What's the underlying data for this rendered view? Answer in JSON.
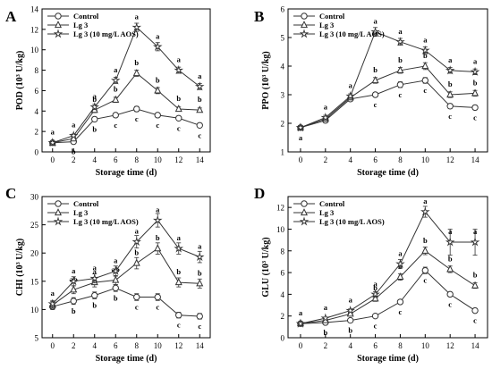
{
  "chart_data": [
    {
      "panel": "A",
      "type": "line",
      "x": [
        0,
        2,
        4,
        6,
        8,
        10,
        12,
        14
      ],
      "xlabel": "Storage time (d)",
      "ylabel": "POD (10",
      "ylabel_sup": "3",
      "ylabel_tail": " U/kg)",
      "xlim": [
        -1,
        15
      ],
      "ylim": [
        0,
        14
      ],
      "yticks": [
        0,
        2,
        4,
        6,
        8,
        10,
        12,
        14
      ],
      "grid": false,
      "legend_position": "top-left",
      "series": [
        {
          "name": "Control",
          "marker": "circle",
          "values": [
            0.9,
            1.0,
            3.2,
            3.6,
            4.2,
            3.6,
            3.3,
            2.6
          ],
          "errors": [
            0.1,
            0.1,
            0.2,
            0.2,
            0.25,
            0.2,
            0.2,
            0.2
          ],
          "letters": [
            "",
            "b",
            "b",
            "c",
            "c",
            "c",
            "c",
            "c"
          ]
        },
        {
          "name": "Lg 3",
          "marker": "triangle",
          "values": [
            0.9,
            1.3,
            4.1,
            5.1,
            7.7,
            6.0,
            4.2,
            4.1
          ],
          "errors": [
            0.1,
            0.1,
            0.25,
            0.25,
            0.3,
            0.3,
            0.2,
            0.2
          ],
          "letters": [
            "",
            "",
            "b",
            "b",
            "b",
            "b",
            "b",
            "b"
          ]
        },
        {
          "name": "Lg 3 (10 mg/L AOS)",
          "marker": "star",
          "values": [
            0.9,
            1.6,
            4.4,
            7.0,
            12.2,
            10.3,
            8.0,
            6.4
          ],
          "errors": [
            0.1,
            0.15,
            0.25,
            0.3,
            0.4,
            0.4,
            0.3,
            0.3
          ],
          "letters": [
            "a",
            "a",
            "a",
            "a",
            "a",
            "a",
            "a",
            "a"
          ]
        }
      ]
    },
    {
      "panel": "B",
      "type": "line",
      "x": [
        0,
        2,
        4,
        6,
        8,
        10,
        12,
        14
      ],
      "xlabel": "Storage time (d)",
      "ylabel": "PPO (10",
      "ylabel_sup": "3",
      "ylabel_tail": " U/kg)",
      "xlim": [
        -1,
        15
      ],
      "ylim": [
        1,
        6
      ],
      "yticks": [
        1,
        2,
        3,
        4,
        5,
        6
      ],
      "grid": false,
      "legend_position": "top-left",
      "series": [
        {
          "name": "Control",
          "marker": "circle",
          "values": [
            1.85,
            2.1,
            2.85,
            3.0,
            3.35,
            3.5,
            2.6,
            2.55
          ],
          "errors": [
            0.05,
            0.08,
            0.08,
            0.08,
            0.1,
            0.1,
            0.08,
            0.08
          ],
          "letters": [
            "a",
            "",
            "",
            "c",
            "c",
            "c",
            "c",
            "c"
          ]
        },
        {
          "name": "Lg 3",
          "marker": "triangle",
          "values": [
            1.85,
            2.15,
            2.9,
            3.5,
            3.85,
            4.0,
            3.0,
            3.05
          ],
          "errors": [
            0.05,
            0.08,
            0.08,
            0.1,
            0.1,
            0.12,
            0.1,
            0.1
          ],
          "letters": [
            "",
            "",
            "",
            "b",
            "b",
            "b",
            "b",
            "b"
          ]
        },
        {
          "name": "Lg 3 (10 mg/L AOS)",
          "marker": "star",
          "values": [
            1.85,
            2.2,
            2.95,
            5.2,
            4.85,
            4.55,
            3.85,
            3.8
          ],
          "errors": [
            0.05,
            0.08,
            0.08,
            0.15,
            0.12,
            0.12,
            0.1,
            0.1
          ],
          "letters": [
            "",
            "a",
            "a",
            "a",
            "a",
            "a",
            "a",
            "a"
          ]
        }
      ]
    },
    {
      "panel": "C",
      "type": "line",
      "x": [
        0,
        2,
        4,
        6,
        8,
        10,
        12,
        14
      ],
      "xlabel": "Storage time (d)",
      "ylabel": "CHI (10",
      "ylabel_sup": "3",
      "ylabel_tail": " U/kg)",
      "xlim": [
        -1,
        15
      ],
      "ylim": [
        5,
        30
      ],
      "yticks": [
        5,
        10,
        15,
        20,
        25,
        30
      ],
      "grid": false,
      "legend_position": "top-left",
      "series": [
        {
          "name": "Control",
          "marker": "circle",
          "values": [
            10.5,
            11.5,
            12.5,
            13.8,
            12.2,
            12.2,
            9.0,
            8.8
          ],
          "errors": [
            0.5,
            0.6,
            0.6,
            0.6,
            0.6,
            0.6,
            0.5,
            0.5
          ],
          "letters": [
            "",
            "b",
            "b",
            "b",
            "c",
            "c",
            "c",
            "c"
          ]
        },
        {
          "name": "Lg 3",
          "marker": "triangle",
          "values": [
            10.8,
            13.5,
            14.8,
            15.2,
            18.2,
            20.8,
            14.8,
            14.6
          ],
          "errors": [
            0.6,
            0.7,
            0.8,
            0.8,
            1.0,
            1.0,
            0.8,
            0.8
          ],
          "letters": [
            "",
            "ab",
            "a",
            "ab",
            "b",
            "b",
            "b",
            "b"
          ]
        },
        {
          "name": "Lg 3 (10 mg/L AOS)",
          "marker": "star",
          "values": [
            11.0,
            15.0,
            15.5,
            16.8,
            22.0,
            25.8,
            20.8,
            19.3
          ],
          "errors": [
            0.6,
            0.8,
            0.8,
            0.9,
            1.1,
            1.2,
            1.0,
            1.0
          ],
          "letters": [
            "a",
            "a",
            "a",
            "a",
            "a",
            "a",
            "a",
            "a"
          ]
        }
      ]
    },
    {
      "panel": "D",
      "type": "line",
      "x": [
        0,
        2,
        4,
        6,
        8,
        10,
        12,
        14
      ],
      "xlabel": "Storage time (d)",
      "ylabel": "GLU (10",
      "ylabel_sup": "3",
      "ylabel_tail": " U/kg)",
      "xlim": [
        -1,
        15
      ],
      "ylim": [
        0,
        13
      ],
      "yticks": [
        0,
        2,
        4,
        6,
        8,
        10,
        12
      ],
      "grid": false,
      "legend_position": "top-left",
      "series": [
        {
          "name": "Control",
          "marker": "circle",
          "values": [
            1.3,
            1.4,
            1.6,
            2.0,
            3.3,
            6.2,
            4.0,
            2.5
          ],
          "errors": [
            0.1,
            0.1,
            0.1,
            0.15,
            0.2,
            0.3,
            0.2,
            0.2
          ],
          "letters": [
            "",
            "b",
            "b",
            "c",
            "c",
            "c",
            "c",
            "c"
          ]
        },
        {
          "name": "Lg 3",
          "marker": "triangle",
          "values": [
            1.3,
            1.6,
            2.2,
            3.6,
            5.6,
            8.0,
            6.3,
            4.8
          ],
          "errors": [
            0.1,
            0.1,
            0.15,
            0.25,
            0.3,
            0.35,
            0.3,
            0.25
          ],
          "letters": [
            "",
            "",
            "",
            "b",
            "b",
            "b",
            "b",
            "b"
          ]
        },
        {
          "name": "Lg 3 (10 mg/L AOS)",
          "marker": "star",
          "values": [
            1.3,
            1.8,
            2.5,
            4.0,
            6.8,
            11.6,
            8.8,
            8.8
          ],
          "errors": [
            0.1,
            0.1,
            0.15,
            0.25,
            0.4,
            0.5,
            1.2,
            1.2
          ],
          "letters": [
            "a",
            "a",
            "a",
            "a",
            "a",
            "a",
            "a",
            "a"
          ]
        }
      ]
    }
  ]
}
